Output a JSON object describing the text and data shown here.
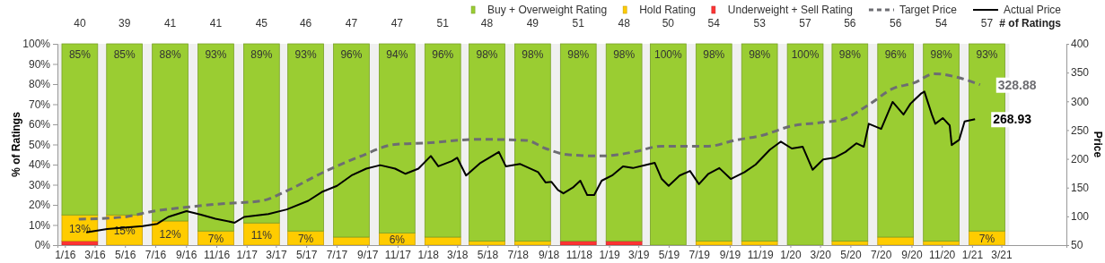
{
  "chart_data": {
    "type": "bar",
    "stacked": true,
    "ylabel": "% of Ratings",
    "y2label": "Price",
    "legend": "top right",
    "grid": false,
    "x": [
      "2016-02-15",
      "2016-05-15",
      "2016-08-15",
      "2016-11-15",
      "2017-02-15",
      "2017-05-15",
      "2017-08-15",
      "2017-11-15",
      "2018-02-15",
      "2018-05-15",
      "2018-08-15",
      "2018-11-15",
      "2019-02-15",
      "2019-05-15",
      "2019-08-15",
      "2019-11-15",
      "2020-02-15",
      "2020-05-15",
      "2020-08-15",
      "2020-11-15",
      "2021-02-15"
    ],
    "xlim": [
      "2016-01-01",
      "2021-07-25"
    ],
    "xticks": [
      {
        "value": "2016-01-16",
        "label": "1/16"
      },
      {
        "value": "2016-03-16",
        "label": "3/16"
      },
      {
        "value": "2016-05-16",
        "label": "5/16"
      },
      {
        "value": "2016-07-16",
        "label": "7/16"
      },
      {
        "value": "2016-09-16",
        "label": "9/16"
      },
      {
        "value": "2016-11-16",
        "label": "11/16"
      },
      {
        "value": "2017-01-16",
        "label": "1/17"
      },
      {
        "value": "2017-03-16",
        "label": "3/17"
      },
      {
        "value": "2017-05-16",
        "label": "5/17"
      },
      {
        "value": "2017-07-16",
        "label": "7/17"
      },
      {
        "value": "2017-09-16",
        "label": "9/17"
      },
      {
        "value": "2017-11-16",
        "label": "11/17"
      },
      {
        "value": "2018-01-16",
        "label": "1/18"
      },
      {
        "value": "2018-03-16",
        "label": "3/18"
      },
      {
        "value": "2018-05-16",
        "label": "5/18"
      },
      {
        "value": "2018-07-16",
        "label": "7/18"
      },
      {
        "value": "2018-09-16",
        "label": "9/18"
      },
      {
        "value": "2018-11-16",
        "label": "11/18"
      },
      {
        "value": "2019-01-16",
        "label": "1/19"
      },
      {
        "value": "2019-03-16",
        "label": "3/19"
      },
      {
        "value": "2019-05-16",
        "label": "5/19"
      },
      {
        "value": "2019-07-16",
        "label": "7/19"
      },
      {
        "value": "2019-09-16",
        "label": "9/19"
      },
      {
        "value": "2019-11-16",
        "label": "11/19"
      },
      {
        "value": "2020-01-16",
        "label": "1/20"
      },
      {
        "value": "2020-03-16",
        "label": "3/20"
      },
      {
        "value": "2020-05-16",
        "label": "5/20"
      },
      {
        "value": "2020-07-16",
        "label": "7/20"
      },
      {
        "value": "2020-09-16",
        "label": "9/20"
      },
      {
        "value": "2020-11-16",
        "label": "11/20"
      },
      {
        "value": "2021-01-16",
        "label": "1/21"
      },
      {
        "value": "2021-03-16",
        "label": "3/21"
      }
    ],
    "ylim": [
      0,
      100
    ],
    "yticks": [
      {
        "value": 0,
        "label": "0%"
      },
      {
        "value": 10,
        "label": "10%"
      },
      {
        "value": 20,
        "label": "20%"
      },
      {
        "value": 30,
        "label": "30%"
      },
      {
        "value": 40,
        "label": "40%"
      },
      {
        "value": 50,
        "label": "50%"
      },
      {
        "value": 60,
        "label": "60%"
      },
      {
        "value": 70,
        "label": "70%"
      },
      {
        "value": 80,
        "label": "80%"
      },
      {
        "value": 90,
        "label": "90%"
      },
      {
        "value": 100,
        "label": "100%"
      }
    ],
    "y2lim": [
      50,
      400
    ],
    "y2ticks": [
      50,
      100,
      150,
      200,
      250,
      300,
      350,
      400
    ],
    "series": [
      {
        "name": "Underweight + Sell Rating",
        "color": "#ff3333",
        "values": [
          2,
          0,
          0,
          0,
          0,
          0,
          0,
          0,
          0,
          0,
          0,
          2,
          2,
          0,
          0,
          0,
          0,
          0,
          0,
          0,
          0
        ]
      },
      {
        "name": "Hold Rating",
        "color": "#ffcc00",
        "values": [
          13,
          15,
          12,
          7,
          11,
          7,
          4,
          6,
          4,
          2,
          2,
          0,
          0,
          0,
          2,
          2,
          0,
          2,
          4,
          2,
          7
        ],
        "value_labels": [
          "13%",
          "15%",
          "12%",
          "7%",
          "11%",
          "7%",
          null,
          "6%",
          null,
          null,
          null,
          null,
          null,
          null,
          null,
          null,
          null,
          null,
          null,
          null,
          "7%"
        ]
      },
      {
        "name": "Buy + Overweight Rating",
        "color": "#9acd32",
        "values": [
          85,
          85,
          88,
          93,
          89,
          93,
          96,
          94,
          96,
          98,
          98,
          98,
          98,
          100,
          98,
          98,
          100,
          98,
          96,
          98,
          93
        ],
        "value_labels": [
          "85%",
          "85%",
          "88%",
          "93%",
          "89%",
          "93%",
          "96%",
          "94%",
          "96%",
          "98%",
          "98%",
          "98%",
          "98%",
          "100%",
          "98%",
          "98%",
          "100%",
          "98%",
          "96%",
          "98%",
          "93%"
        ]
      },
      {
        "type": "line",
        "name": "Target Price",
        "axis": "y2",
        "color": "#6d6d72",
        "line_style": "dashed",
        "x": [
          "2016-02-13",
          "2016-05-15",
          "2016-07-06",
          "2016-09-18",
          "2016-11-28",
          "2017-02-15",
          "2017-04-06",
          "2017-06-18",
          "2017-09-01",
          "2017-11-10",
          "2018-01-21",
          "2018-04-24",
          "2018-08-03",
          "2018-09-10",
          "2018-10-27",
          "2019-01-01",
          "2019-02-01",
          "2019-03-12",
          "2019-05-01",
          "2019-08-04",
          "2019-09-25",
          "2019-11-21",
          "2020-01-18",
          "2020-03-16",
          "2020-04-28",
          "2020-06-25",
          "2020-08-09",
          "2020-09-21",
          "2020-11-01",
          "2020-12-25",
          "2021-02-01"
        ],
        "values": [
          95,
          99,
          108,
          116,
          122,
          127,
          144,
          176,
          204,
          225,
          228,
          234,
          232,
          218,
          207,
          205,
          207,
          213,
          222,
          222,
          232,
          241,
          257,
          263,
          268,
          296,
          322,
          332,
          348,
          340,
          328.88
        ],
        "value_labels": [
          null,
          null,
          null,
          null,
          null,
          null,
          null,
          null,
          null,
          null,
          null,
          null,
          null,
          null,
          null,
          null,
          null,
          null,
          null,
          null,
          null,
          null,
          null,
          null,
          null,
          null,
          null,
          null,
          null,
          null,
          "328.88"
        ]
      },
      {
        "type": "line",
        "name": "Actual Price",
        "axis": "y2",
        "color": "#000000",
        "line_style": "solid",
        "x": [
          "2016-02-28",
          "2016-04-10",
          "2016-06-21",
          "2016-07-20",
          "2016-08-11",
          "2016-09-17",
          "2016-10-16",
          "2016-11-14",
          "2016-12-23",
          "2017-01-11",
          "2017-03-01",
          "2017-04-07",
          "2017-05-20",
          "2017-06-18",
          "2017-07-17",
          "2017-08-15",
          "2017-09-14",
          "2017-10-12",
          "2017-11-11",
          "2017-12-02",
          "2017-12-28",
          "2018-01-22",
          "2018-02-06",
          "2018-03-05",
          "2018-03-16",
          "2018-04-03",
          "2018-05-02",
          "2018-06-08",
          "2018-06-22",
          "2018-07-21",
          "2018-08-26",
          "2018-09-10",
          "2018-09-22",
          "2018-10-05",
          "2018-10-16",
          "2018-11-04",
          "2018-11-19",
          "2018-12-03",
          "2018-12-17",
          "2019-01-01",
          "2019-01-22",
          "2019-02-13",
          "2019-03-05",
          "2019-04-03",
          "2019-04-18",
          "2019-05-02",
          "2019-05-16",
          "2019-06-07",
          "2019-06-28",
          "2019-07-16",
          "2019-08-04",
          "2019-08-26",
          "2019-09-18",
          "2019-10-16",
          "2019-11-07",
          "2019-12-06",
          "2019-12-28",
          "2020-01-19",
          "2020-02-10",
          "2020-03-01",
          "2020-03-22",
          "2020-04-14",
          "2020-05-06",
          "2020-05-28",
          "2020-06-12",
          "2020-06-22",
          "2020-07-17",
          "2020-08-09",
          "2020-08-31",
          "2020-09-14",
          "2020-10-06",
          "2020-10-12",
          "2020-10-27",
          "2020-11-03",
          "2020-11-18",
          "2020-12-02",
          "2020-12-06",
          "2020-12-21",
          "2021-01-01",
          "2021-01-22"
        ],
        "values": [
          72,
          78,
          83,
          87,
          99,
          109,
          103,
          96,
          89,
          99,
          104,
          112,
          127,
          143,
          153,
          171,
          183,
          189,
          183,
          174,
          183,
          205,
          187,
          196,
          202,
          171,
          193,
          212,
          187,
          191,
          177,
          159,
          160,
          146,
          140,
          150,
          162,
          137,
          137,
          162,
          171,
          187,
          184,
          190,
          193,
          165,
          153,
          171,
          179,
          156,
          174,
          184,
          165,
          177,
          190,
          216,
          230,
          218,
          221,
          181,
          199,
          202,
          212,
          227,
          221,
          261,
          252,
          299,
          277,
          296,
          314,
          317,
          277,
          261,
          271,
          258,
          224,
          233,
          265,
          268.93
        ],
        "value_labels": [
          null,
          null,
          null,
          null,
          null,
          null,
          null,
          null,
          null,
          null,
          null,
          null,
          null,
          null,
          null,
          null,
          null,
          null,
          null,
          null,
          null,
          null,
          null,
          null,
          null,
          null,
          null,
          null,
          null,
          null,
          null,
          null,
          null,
          null,
          null,
          null,
          null,
          null,
          null,
          null,
          null,
          null,
          null,
          null,
          null,
          null,
          null,
          null,
          null,
          null,
          null,
          null,
          null,
          null,
          null,
          null,
          null,
          null,
          null,
          null,
          null,
          null,
          null,
          null,
          null,
          null,
          null,
          null,
          null,
          null,
          null,
          null,
          null,
          null,
          null,
          null,
          null,
          null,
          null,
          "268.93"
        ]
      }
    ],
    "annotations": [
      "40",
      "39",
      "41",
      "41",
      "45",
      "46",
      "47",
      "47",
      "51",
      "48",
      "49",
      "51",
      "48",
      "50",
      "54",
      "53",
      "57",
      "56",
      "56",
      "54",
      "57",
      "# of Ratings"
    ]
  }
}
